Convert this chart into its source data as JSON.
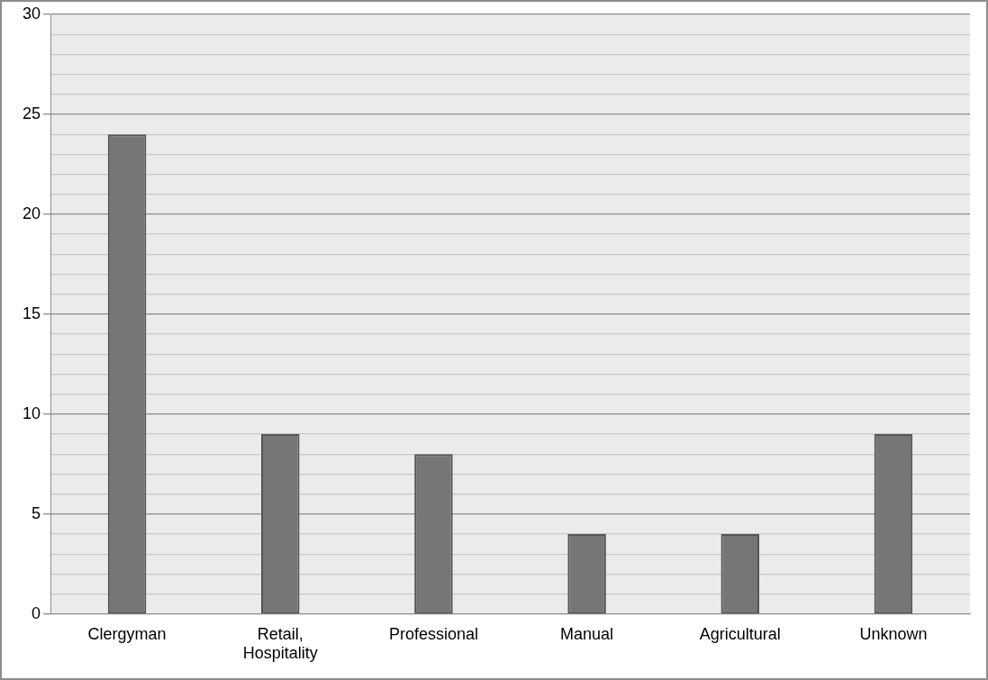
{
  "chart_data": {
    "type": "bar",
    "categories": [
      "Clergyman",
      "Retail, Hospitality",
      "Professional",
      "Manual",
      "Agricultural",
      "Unknown"
    ],
    "values": [
      24,
      9,
      8,
      4,
      4,
      9
    ],
    "color": "#767676",
    "ylim": [
      0,
      30
    ],
    "yticks": [
      0,
      {
        "value": 1,
        "label": null
      },
      {
        "value": 2,
        "label": null
      },
      {
        "value": 3,
        "label": null
      },
      {
        "value": 4,
        "label": null
      },
      5,
      {
        "value": 6,
        "label": null
      },
      {
        "value": 7,
        "label": null
      },
      {
        "value": 8,
        "label": null
      },
      {
        "value": 9,
        "label": null
      },
      10,
      {
        "value": 11,
        "label": null
      },
      {
        "value": 12,
        "label": null
      },
      {
        "value": 13,
        "label": null
      },
      {
        "value": 14,
        "label": null
      },
      15,
      {
        "value": 16,
        "label": null
      },
      {
        "value": 17,
        "label": null
      },
      {
        "value": 18,
        "label": null
      },
      {
        "value": 19,
        "label": null
      },
      20,
      {
        "value": 21,
        "label": null
      },
      {
        "value": 22,
        "label": null
      },
      {
        "value": 23,
        "label": null
      },
      {
        "value": 24,
        "label": null
      },
      25,
      {
        "value": 26,
        "label": null
      },
      {
        "value": 27,
        "label": null
      },
      {
        "value": 28,
        "label": null
      },
      {
        "value": 29,
        "label": null
      },
      30
    ],
    "grid": "y"
  }
}
